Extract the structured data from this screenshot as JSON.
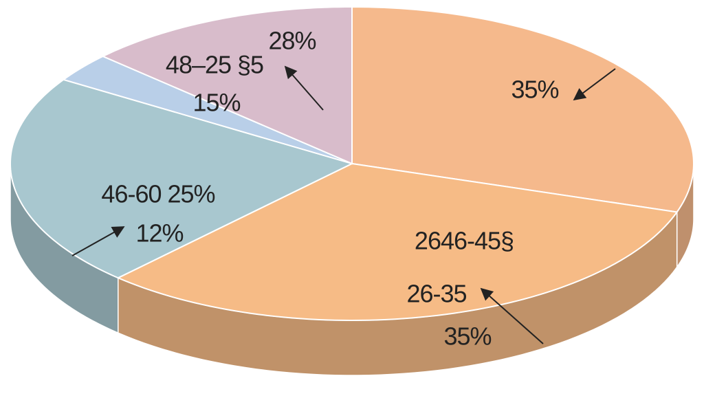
{
  "chart_data": {
    "type": "pie",
    "values": [
      30,
      32,
      22,
      3,
      13
    ],
    "colors": [
      "#f5b98c",
      "#f6bb86",
      "#a8c7cf",
      "#b9cfe8",
      "#d8bccb"
    ],
    "annotations": [
      "28%",
      "48–25 §5",
      "15%",
      "35%",
      "2646-45§",
      "26-35",
      "35%",
      "46-60 25%",
      "12%"
    ]
  }
}
